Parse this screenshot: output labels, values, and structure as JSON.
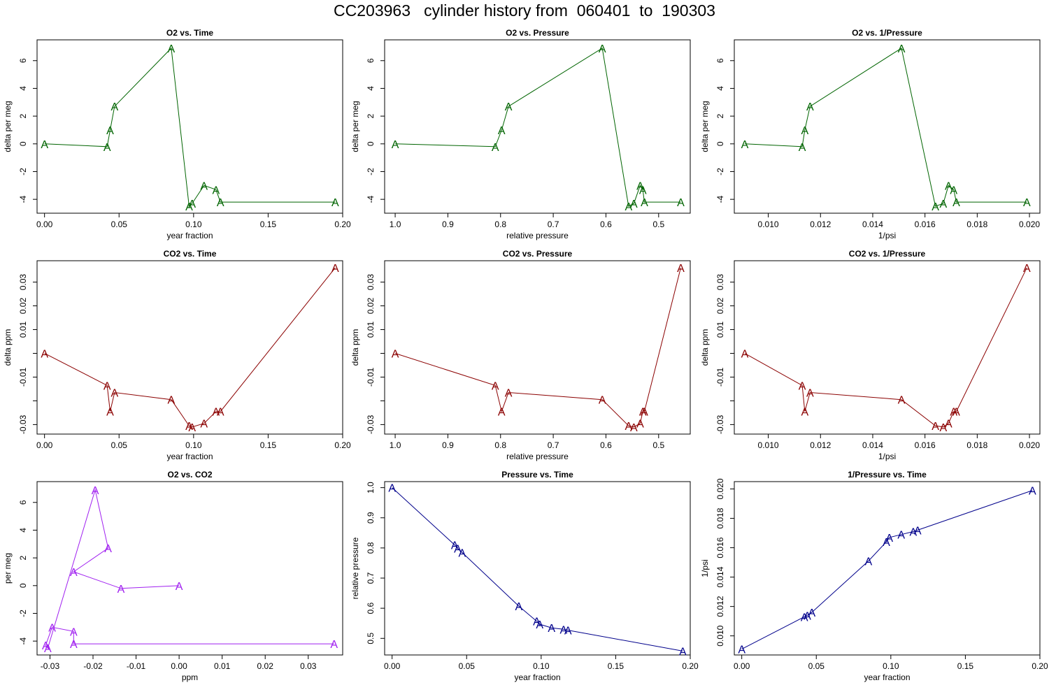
{
  "page_title": "CC203963   cylinder history from  060401  to  190303",
  "colors": {
    "o2": "#006400",
    "co2": "#8B0000",
    "o2co2": "#A020F0",
    "pressure": "#00008B"
  },
  "point_label": "A",
  "chart_data": [
    {
      "type": "line",
      "title": "O2 vs. Time",
      "xlabel": "year fraction",
      "ylabel": "delta per meg",
      "xlim": [
        -0.005,
        0.2
      ],
      "ylim": [
        -5,
        7.5
      ],
      "x_reversed": false,
      "x_ticks": [
        0.0,
        0.05,
        0.1,
        0.15,
        0.2
      ],
      "x_tick_labels": [
        "0.00",
        "0.05",
        "0.10",
        "0.15",
        "0.20"
      ],
      "y_ticks": [
        -4,
        -2,
        0,
        2,
        4,
        6
      ],
      "y_tick_labels": [
        "-4",
        "-2",
        "0",
        "2",
        "4",
        "6"
      ],
      "color_key": "o2",
      "x": [
        0.0,
        0.042,
        0.044,
        0.047,
        0.085,
        0.097,
        0.099,
        0.107,
        0.115,
        0.118,
        0.195
      ],
      "y": [
        0.0,
        -0.2,
        1.0,
        2.7,
        6.9,
        -4.5,
        -4.3,
        -3.0,
        -3.3,
        -4.2,
        -4.2
      ]
    },
    {
      "type": "line",
      "title": "O2 vs. Pressure",
      "xlabel": "relative pressure",
      "ylabel": "delta per meg",
      "xlim": [
        1.02,
        0.44
      ],
      "ylim": [
        -5,
        7.5
      ],
      "x_reversed": true,
      "x_ticks": [
        1.0,
        0.9,
        0.8,
        0.7,
        0.6,
        0.5
      ],
      "x_tick_labels": [
        "1.0",
        "0.9",
        "0.8",
        "0.7",
        "0.6",
        "0.5"
      ],
      "y_ticks": [
        -4,
        -2,
        0,
        2,
        4,
        6
      ],
      "y_tick_labels": [
        "-4",
        "-2",
        "0",
        "2",
        "4",
        "6"
      ],
      "color_key": "o2",
      "x": [
        1.0,
        0.81,
        0.798,
        0.785,
        0.607,
        0.557,
        0.547,
        0.535,
        0.53,
        0.527,
        0.458
      ],
      "y": [
        0.0,
        -0.2,
        1.0,
        2.7,
        6.9,
        -4.5,
        -4.3,
        -3.0,
        -3.3,
        -4.2,
        -4.2
      ]
    },
    {
      "type": "line",
      "title": "O2 vs. 1/Pressure",
      "xlabel": "1/psi",
      "ylabel": "delta per meg",
      "xlim": [
        0.0087,
        0.0204
      ],
      "ylim": [
        -5,
        7.5
      ],
      "x_reversed": false,
      "x_ticks": [
        0.01,
        0.012,
        0.014,
        0.016,
        0.018,
        0.02
      ],
      "x_tick_labels": [
        "0.010",
        "0.012",
        "0.014",
        "0.016",
        "0.018",
        "0.020"
      ],
      "y_ticks": [
        -4,
        -2,
        0,
        2,
        4,
        6
      ],
      "y_tick_labels": [
        "-4",
        "-2",
        "0",
        "2",
        "4",
        "6"
      ],
      "color_key": "o2",
      "x": [
        0.0091,
        0.0113,
        0.0114,
        0.0116,
        0.0151,
        0.0164,
        0.0167,
        0.0169,
        0.0171,
        0.0172,
        0.0199
      ],
      "y": [
        0.0,
        -0.2,
        1.0,
        2.7,
        6.9,
        -4.5,
        -4.3,
        -3.0,
        -3.3,
        -4.2,
        -4.2
      ]
    },
    {
      "type": "line",
      "title": "CO2 vs. Time",
      "xlabel": "year fraction",
      "ylabel": "delta ppm",
      "xlim": [
        -0.005,
        0.2
      ],
      "ylim": [
        -0.034,
        0.039
      ],
      "x_reversed": false,
      "x_ticks": [
        0.0,
        0.05,
        0.1,
        0.15,
        0.2
      ],
      "x_tick_labels": [
        "0.00",
        "0.05",
        "0.10",
        "0.15",
        "0.20"
      ],
      "y_ticks": [
        -0.03,
        -0.02,
        -0.01,
        0.0,
        0.01,
        0.02,
        0.03
      ],
      "y_tick_labels": [
        "-0.03",
        "",
        "-0.01",
        "",
        "0.01",
        "0.02",
        "0.03"
      ],
      "color_key": "co2",
      "x": [
        0.0,
        0.042,
        0.044,
        0.047,
        0.085,
        0.097,
        0.099,
        0.107,
        0.115,
        0.118,
        0.195
      ],
      "y": [
        0.0,
        -0.0135,
        -0.0245,
        -0.0165,
        -0.0195,
        -0.0305,
        -0.031,
        -0.0295,
        -0.0245,
        -0.0245,
        0.036
      ]
    },
    {
      "type": "line",
      "title": "CO2 vs. Pressure",
      "xlabel": "relative pressure",
      "ylabel": "delta ppm",
      "xlim": [
        1.02,
        0.44
      ],
      "ylim": [
        -0.034,
        0.039
      ],
      "x_reversed": true,
      "x_ticks": [
        1.0,
        0.9,
        0.8,
        0.7,
        0.6,
        0.5
      ],
      "x_tick_labels": [
        "1.0",
        "0.9",
        "0.8",
        "0.7",
        "0.6",
        "0.5"
      ],
      "y_ticks": [
        -0.03,
        -0.02,
        -0.01,
        0.0,
        0.01,
        0.02,
        0.03
      ],
      "y_tick_labels": [
        "-0.03",
        "",
        "-0.01",
        "",
        "0.01",
        "0.02",
        "0.03"
      ],
      "color_key": "co2",
      "x": [
        1.0,
        0.81,
        0.798,
        0.785,
        0.607,
        0.557,
        0.547,
        0.535,
        0.53,
        0.527,
        0.458
      ],
      "y": [
        0.0,
        -0.0135,
        -0.0245,
        -0.0165,
        -0.0195,
        -0.0305,
        -0.031,
        -0.0295,
        -0.0245,
        -0.0245,
        0.036
      ]
    },
    {
      "type": "line",
      "title": "CO2 vs. 1/Pressure",
      "xlabel": "1/psi",
      "ylabel": "delta ppm",
      "xlim": [
        0.0087,
        0.0204
      ],
      "ylim": [
        -0.034,
        0.039
      ],
      "x_reversed": false,
      "x_ticks": [
        0.01,
        0.012,
        0.014,
        0.016,
        0.018,
        0.02
      ],
      "x_tick_labels": [
        "0.010",
        "0.012",
        "0.014",
        "0.016",
        "0.018",
        "0.020"
      ],
      "y_ticks": [
        -0.03,
        -0.02,
        -0.01,
        0.0,
        0.01,
        0.02,
        0.03
      ],
      "y_tick_labels": [
        "-0.03",
        "",
        "-0.01",
        "",
        "0.01",
        "0.02",
        "0.03"
      ],
      "color_key": "co2",
      "x": [
        0.0091,
        0.0113,
        0.0114,
        0.0116,
        0.0151,
        0.0164,
        0.0167,
        0.0169,
        0.0171,
        0.0172,
        0.0199
      ],
      "y": [
        0.0,
        -0.0135,
        -0.0245,
        -0.0165,
        -0.0195,
        -0.0305,
        -0.031,
        -0.0295,
        -0.0245,
        -0.0245,
        0.036
      ]
    },
    {
      "type": "line",
      "title": "O2 vs. CO2",
      "xlabel": "ppm",
      "ylabel": "per meg",
      "xlim": [
        -0.033,
        0.038
      ],
      "ylim": [
        -5,
        7.5
      ],
      "x_reversed": false,
      "x_ticks": [
        -0.03,
        -0.02,
        -0.01,
        0.0,
        0.01,
        0.02,
        0.03
      ],
      "x_tick_labels": [
        "-0.03",
        "-0.02",
        "-0.01",
        "0.00",
        "0.01",
        "0.02",
        "0.03"
      ],
      "y_ticks": [
        -4,
        -2,
        0,
        2,
        4,
        6
      ],
      "y_tick_labels": [
        "-4",
        "-2",
        "0",
        "2",
        "4",
        "6"
      ],
      "color_key": "o2co2",
      "x": [
        0.0,
        -0.0135,
        -0.0245,
        -0.0165,
        -0.0195,
        -0.0305,
        -0.031,
        -0.0295,
        -0.0245,
        -0.0245,
        0.036
      ],
      "y": [
        0.0,
        -0.2,
        1.0,
        2.7,
        6.9,
        -4.5,
        -4.3,
        -3.0,
        -3.3,
        -4.2,
        -4.2
      ]
    },
    {
      "type": "line",
      "title": "Pressure vs. Time",
      "xlabel": "year fraction",
      "ylabel": "relative pressure",
      "xlim": [
        -0.005,
        0.2
      ],
      "ylim": [
        0.445,
        1.02
      ],
      "x_reversed": false,
      "x_ticks": [
        0.0,
        0.05,
        0.1,
        0.15,
        0.2
      ],
      "x_tick_labels": [
        "0.00",
        "0.05",
        "0.10",
        "0.15",
        "0.20"
      ],
      "y_ticks": [
        0.5,
        0.6,
        0.7,
        0.8,
        0.9,
        1.0
      ],
      "y_tick_labels": [
        "0.5",
        "0.6",
        "0.7",
        "0.8",
        "0.9",
        "1.0"
      ],
      "color_key": "pressure",
      "x": [
        0.0,
        0.042,
        0.044,
        0.047,
        0.085,
        0.097,
        0.099,
        0.107,
        0.115,
        0.118,
        0.195
      ],
      "y": [
        1.0,
        0.81,
        0.798,
        0.785,
        0.607,
        0.557,
        0.547,
        0.535,
        0.53,
        0.527,
        0.458
      ]
    },
    {
      "type": "line",
      "title": "1/Pressure vs. Time",
      "xlabel": "year fraction",
      "ylabel": "1/psi",
      "xlim": [
        -0.005,
        0.2
      ],
      "ylim": [
        0.0087,
        0.0205
      ],
      "x_reversed": false,
      "x_ticks": [
        0.0,
        0.05,
        0.1,
        0.15,
        0.2
      ],
      "x_tick_labels": [
        "0.00",
        "0.05",
        "0.10",
        "0.15",
        "0.20"
      ],
      "y_ticks": [
        0.01,
        0.012,
        0.014,
        0.016,
        0.018,
        0.02
      ],
      "y_tick_labels": [
        "0.010",
        "0.012",
        "0.014",
        "0.016",
        "0.018",
        "0.020"
      ],
      "color_key": "pressure",
      "x": [
        0.0,
        0.042,
        0.044,
        0.047,
        0.085,
        0.097,
        0.099,
        0.107,
        0.115,
        0.118,
        0.195
      ],
      "y": [
        0.0091,
        0.0113,
        0.0114,
        0.0116,
        0.0151,
        0.0164,
        0.0167,
        0.0169,
        0.0171,
        0.0172,
        0.0199
      ]
    }
  ]
}
